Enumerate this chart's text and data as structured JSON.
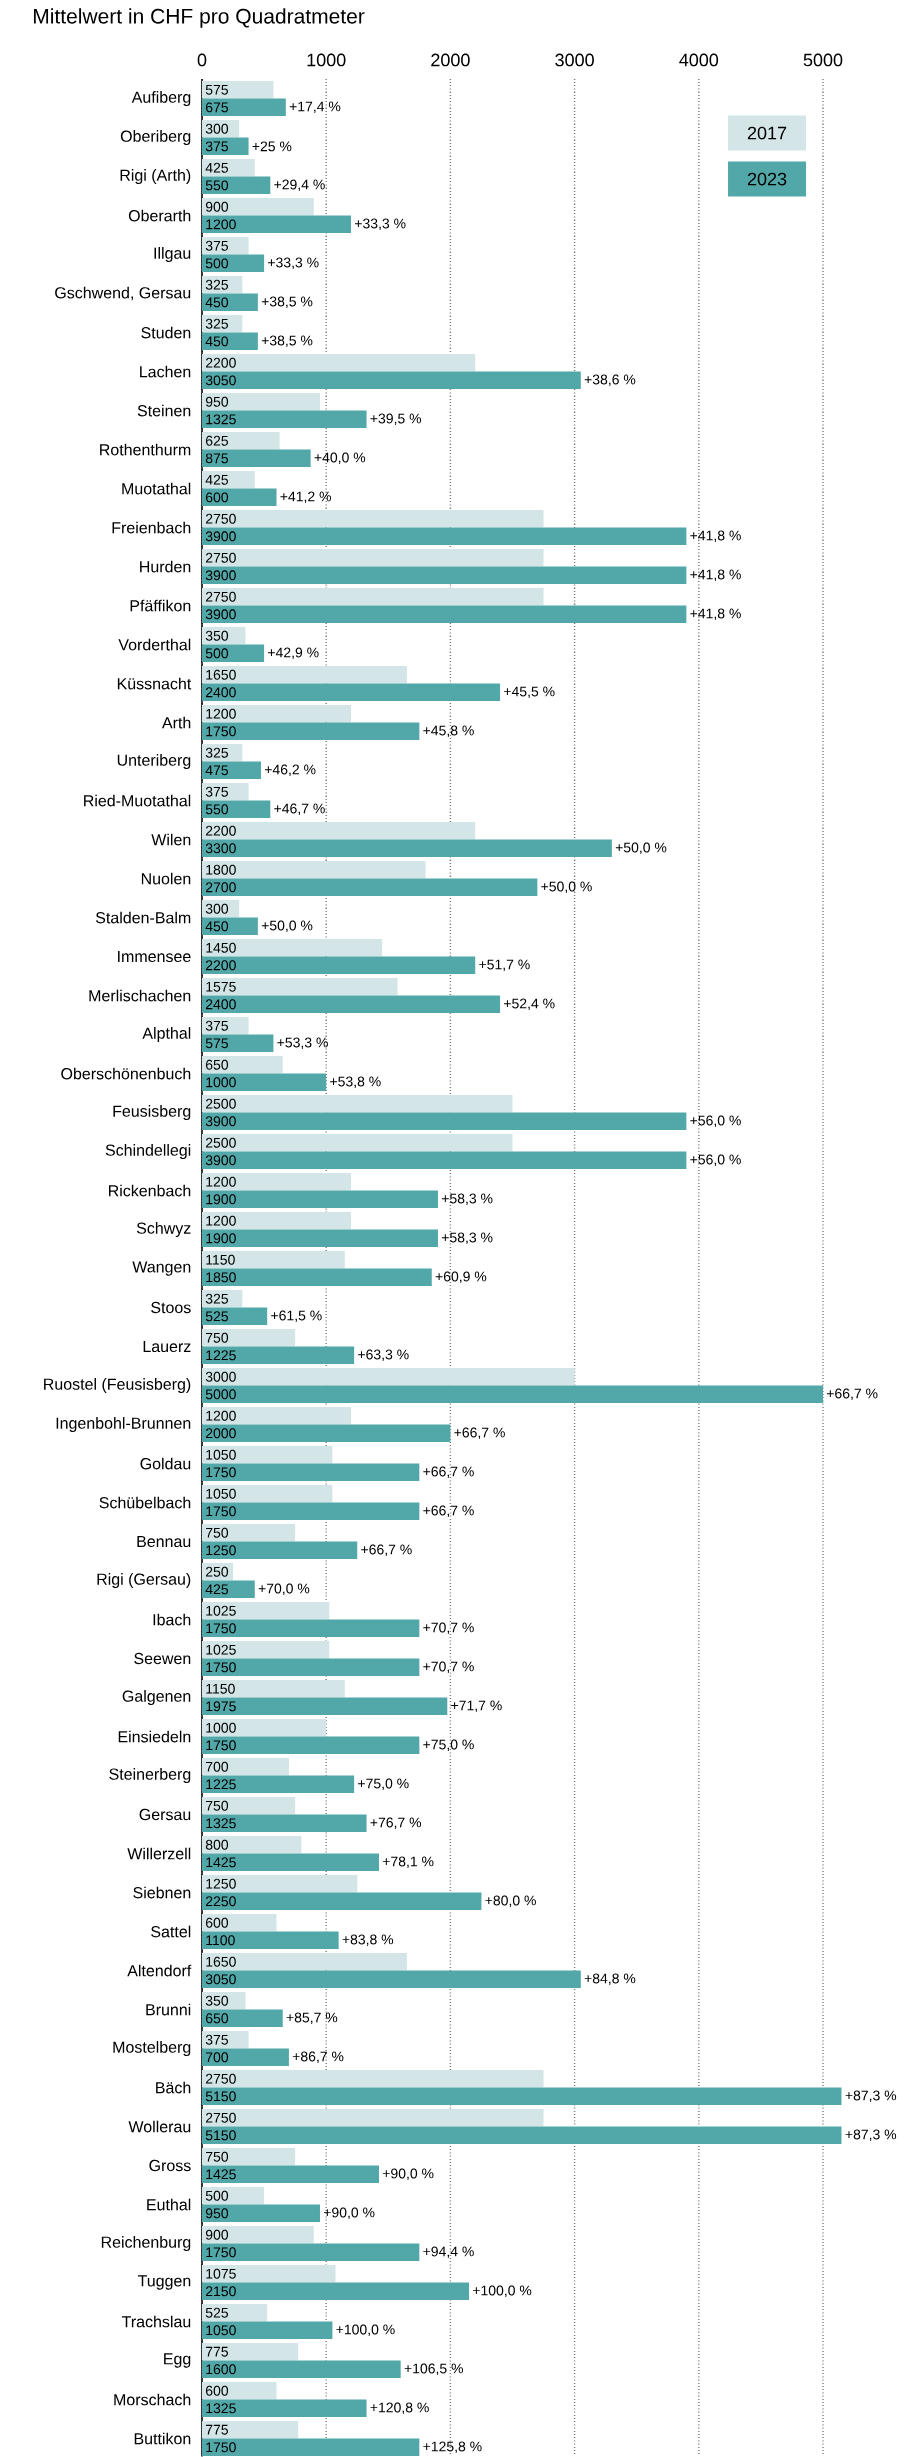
{
  "chart_data": {
    "type": "bar",
    "orientation": "horizontal",
    "subtitle": "Mittelwert in CHF pro Quadratmeter",
    "categories": [
      "Aufiberg",
      "Oberiberg",
      "Rigi (Arth)",
      "Oberarth",
      "Illgau",
      "Gschwend, Gersau",
      "Studen",
      "Lachen",
      "Steinen",
      "Rothenthurm",
      "Muotathal",
      "Freienbach",
      "Hurden",
      "Pfäffikon",
      "Vorderthal",
      "Küssnacht",
      "Arth",
      "Unteriberg",
      "Ried-Muotathal",
      "Wilen",
      "Nuolen",
      "Stalden-Balm",
      "Immensee",
      "Merlischachen",
      "Alpthal",
      "Oberschönenbuch",
      "Feusisberg",
      "Schindellegi",
      "Rickenbach",
      "Schwyz",
      "Wangen",
      "Stoos",
      "Lauerz",
      "Ruostel (Feusisberg)",
      "Ingenbohl-Brunnen",
      "Goldau",
      "Schübelbach",
      "Bennau",
      "Rigi (Gersau)",
      "Ibach",
      "Seewen",
      "Galgenen",
      "Einsiedeln",
      "Steinerberg",
      "Gersau",
      "Willerzell",
      "Siebnen",
      "Sattel",
      "Altendorf",
      "Brunni",
      "Mostelberg",
      "Bäch",
      "Wollerau",
      "Gross",
      "Euthal",
      "Reichenburg",
      "Tuggen",
      "Trachslau",
      "Egg",
      "Morschach",
      "Buttikon"
    ],
    "series": [
      {
        "name": "2017",
        "color": "#d3e5e6",
        "values": [
          575,
          300,
          425,
          900,
          375,
          325,
          325,
          2200,
          950,
          625,
          425,
          2750,
          2750,
          2750,
          350,
          1650,
          1200,
          325,
          375,
          2200,
          1800,
          300,
          1450,
          1575,
          375,
          650,
          2500,
          2500,
          1200,
          1200,
          1150,
          325,
          750,
          3000,
          1200,
          1050,
          1050,
          750,
          250,
          1025,
          1025,
          1150,
          1000,
          700,
          750,
          800,
          1250,
          600,
          1650,
          350,
          375,
          2750,
          2750,
          750,
          500,
          900,
          1075,
          525,
          775,
          600,
          775
        ]
      },
      {
        "name": "2023",
        "color": "#52a8a8",
        "values": [
          675,
          375,
          550,
          1200,
          500,
          450,
          450,
          3050,
          1325,
          875,
          600,
          3900,
          3900,
          3900,
          500,
          2400,
          1750,
          475,
          550,
          3300,
          2700,
          450,
          2200,
          2400,
          575,
          1000,
          3900,
          3900,
          1900,
          1900,
          1850,
          525,
          1225,
          5000,
          2000,
          1750,
          1750,
          1250,
          425,
          1750,
          1750,
          1975,
          1750,
          1225,
          1325,
          1425,
          2250,
          1100,
          3050,
          650,
          700,
          5150,
          5150,
          1425,
          950,
          1750,
          2150,
          1050,
          1600,
          1325,
          1750
        ]
      }
    ],
    "data_labels": true,
    "xlim": [
      0,
      5150
    ],
    "xticks": [
      0,
      1000,
      2000,
      3000,
      4000,
      5000
    ],
    "grid": "x",
    "legend": "top right",
    "annotations": [
      {
        "text": "+17,4 %",
        "x": 675,
        "y": "Aufiberg"
      },
      {
        "text": "+25 %",
        "x": 375,
        "y": "Oberiberg"
      },
      {
        "text": "+29,4 %",
        "x": 550,
        "y": "Rigi (Arth)"
      },
      {
        "text": "+33,3 %",
        "x": 1200,
        "y": "Oberarth"
      },
      {
        "text": "+33,3 %",
        "x": 500,
        "y": "Illgau"
      },
      {
        "text": "+38,5 %",
        "x": 450,
        "y": "Gschwend, Gersau"
      },
      {
        "text": "+38,5 %",
        "x": 450,
        "y": "Studen"
      },
      {
        "text": "+38,6 %",
        "x": 3050,
        "y": "Lachen"
      },
      {
        "text": "+39,5 %",
        "x": 1325,
        "y": "Steinen"
      },
      {
        "text": "+40,0 %",
        "x": 875,
        "y": "Rothenthurm"
      },
      {
        "text": "+41,2 %",
        "x": 600,
        "y": "Muotathal"
      },
      {
        "text": "+41,8 %",
        "x": 3900,
        "y": "Freienbach"
      },
      {
        "text": "+41,8 %",
        "x": 3900,
        "y": "Hurden"
      },
      {
        "text": "+41,8 %",
        "x": 3900,
        "y": "Pfäffikon"
      },
      {
        "text": "+42,9 %",
        "x": 500,
        "y": "Vorderthal"
      },
      {
        "text": "+45,5 %",
        "x": 2400,
        "y": "Küssnacht"
      },
      {
        "text": "+45,8 %",
        "x": 1750,
        "y": "Arth"
      },
      {
        "text": "+46,2 %",
        "x": 475,
        "y": "Unteriberg"
      },
      {
        "text": "+46,7 %",
        "x": 550,
        "y": "Ried-Muotathal"
      },
      {
        "text": "+50,0 %",
        "x": 3300,
        "y": "Wilen"
      },
      {
        "text": "+50,0 %",
        "x": 2700,
        "y": "Nuolen"
      },
      {
        "text": "+50,0 %",
        "x": 450,
        "y": "Stalden-Balm"
      },
      {
        "text": "+51,7 %",
        "x": 2200,
        "y": "Immensee"
      },
      {
        "text": "+52,4 %",
        "x": 2400,
        "y": "Merlischachen"
      },
      {
        "text": "+53,3 %",
        "x": 575,
        "y": "Alpthal"
      },
      {
        "text": "+53,8 %",
        "x": 1000,
        "y": "Oberschönenbuch"
      },
      {
        "text": "+56,0 %",
        "x": 3900,
        "y": "Feusisberg"
      },
      {
        "text": "+56,0 %",
        "x": 3900,
        "y": "Schindellegi"
      },
      {
        "text": "+58,3 %",
        "x": 1900,
        "y": "Rickenbach"
      },
      {
        "text": "+58,3 %",
        "x": 1900,
        "y": "Schwyz"
      },
      {
        "text": "+60,9 %",
        "x": 1850,
        "y": "Wangen"
      },
      {
        "text": "+61,5 %",
        "x": 525,
        "y": "Stoos"
      },
      {
        "text": "+63,3 %",
        "x": 1225,
        "y": "Lauerz"
      },
      {
        "text": "+66,7 %",
        "x": 5000,
        "y": "Ruostel (Feusisberg)"
      },
      {
        "text": "+66,7 %",
        "x": 2000,
        "y": "Ingenbohl-Brunnen"
      },
      {
        "text": "+66,7 %",
        "x": 1750,
        "y": "Goldau"
      },
      {
        "text": "+66,7 %",
        "x": 1750,
        "y": "Schübelbach"
      },
      {
        "text": "+66,7 %",
        "x": 1250,
        "y": "Bennau"
      },
      {
        "text": "+70,0 %",
        "x": 425,
        "y": "Rigi (Gersau)"
      },
      {
        "text": "+70,7 %",
        "x": 1750,
        "y": "Ibach"
      },
      {
        "text": "+70,7 %",
        "x": 1750,
        "y": "Seewen"
      },
      {
        "text": "+71,7 %",
        "x": 1975,
        "y": "Galgenen"
      },
      {
        "text": "+75,0 %",
        "x": 1750,
        "y": "Einsiedeln"
      },
      {
        "text": "+75,0 %",
        "x": 1225,
        "y": "Steinerberg"
      },
      {
        "text": "+76,7 %",
        "x": 1325,
        "y": "Gersau"
      },
      {
        "text": "+78,1 %",
        "x": 1425,
        "y": "Willerzell"
      },
      {
        "text": "+80,0 %",
        "x": 2250,
        "y": "Siebnen"
      },
      {
        "text": "+83,8 %",
        "x": 1100,
        "y": "Sattel"
      },
      {
        "text": "+84,8 %",
        "x": 3050,
        "y": "Altendorf"
      },
      {
        "text": "+85,7 %",
        "x": 650,
        "y": "Brunni"
      },
      {
        "text": "+86,7 %",
        "x": 700,
        "y": "Mostelberg"
      },
      {
        "text": "+87,3 %",
        "x": 5150,
        "y": "Bäch"
      },
      {
        "text": "+87,3 %",
        "x": 5150,
        "y": "Wollerau"
      },
      {
        "text": "+90,0 %",
        "x": 1425,
        "y": "Gross"
      },
      {
        "text": "+90,0 %",
        "x": 950,
        "y": "Euthal"
      },
      {
        "text": "+94,4 %",
        "x": 1750,
        "y": "Reichenburg"
      },
      {
        "text": "+100,0 %",
        "x": 2150,
        "y": "Tuggen"
      },
      {
        "text": "+100,0 %",
        "x": 1050,
        "y": "Trachslau"
      },
      {
        "text": "+106,5 %",
        "x": 1600,
        "y": "Egg"
      },
      {
        "text": "+120,8 %",
        "x": 1325,
        "y": "Morschach"
      },
      {
        "text": "+125,8 %",
        "x": 1750,
        "y": "Buttikon"
      }
    ]
  }
}
